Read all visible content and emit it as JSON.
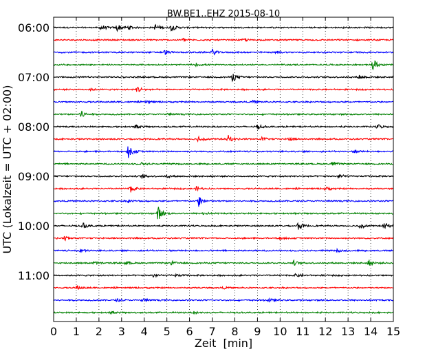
{
  "chart_data": {
    "type": "line",
    "title": "BW.BE1..EHZ 2015-08-10",
    "xlabel": "Zeit  [min]",
    "ylabel": "UTC (Lokalzeit = UTC + 02:00)",
    "xlim": [
      0,
      15
    ],
    "x_ticks": [
      "0",
      "1",
      "2",
      "3",
      "4",
      "5",
      "6",
      "7",
      "8",
      "9",
      "10",
      "11",
      "12",
      "13",
      "14",
      "15"
    ],
    "y_ticks": [
      "06:00",
      "07:00",
      "08:00",
      "09:00",
      "10:00",
      "11:00"
    ],
    "grid": "vertical dotted lines at each minute",
    "trace_colors": [
      "#000000",
      "#ff0000",
      "#0000ff",
      "#008000"
    ],
    "traces": [
      {
        "start": "06:00",
        "events": [
          {
            "t": 2.1,
            "amp": 0.45
          },
          {
            "t": 2.8,
            "amp": 0.6
          },
          {
            "t": 3.3,
            "amp": 0.35
          },
          {
            "t": 4.5,
            "amp": 0.5
          },
          {
            "t": 5.2,
            "amp": 0.55
          }
        ]
      },
      {
        "start": "06:15",
        "events": [
          {
            "t": 5.7,
            "amp": 0.3
          },
          {
            "t": 8.4,
            "amp": 0.2
          }
        ]
      },
      {
        "start": "06:30",
        "events": [
          {
            "t": 4.9,
            "amp": 0.35
          },
          {
            "t": 7.0,
            "amp": 0.5
          },
          {
            "t": 9.8,
            "amp": 0.2
          }
        ]
      },
      {
        "start": "06:45",
        "events": [
          {
            "t": 6.3,
            "amp": 0.2
          },
          {
            "t": 14.1,
            "amp": 0.9
          }
        ]
      },
      {
        "start": "07:00",
        "events": [
          {
            "t": 7.9,
            "amp": 0.7
          },
          {
            "t": 13.5,
            "amp": 0.35
          }
        ]
      },
      {
        "start": "07:15",
        "events": [
          {
            "t": 3.7,
            "amp": 0.55
          },
          {
            "t": 1.6,
            "amp": 0.15
          }
        ]
      },
      {
        "start": "07:30",
        "events": [
          {
            "t": 4.1,
            "amp": 0.2
          },
          {
            "t": 8.8,
            "amp": 0.2
          }
        ]
      },
      {
        "start": "07:45",
        "events": [
          {
            "t": 1.2,
            "amp": 0.65
          },
          {
            "t": 5.0,
            "amp": 0.15
          }
        ]
      },
      {
        "start": "08:00",
        "events": [
          {
            "t": 3.6,
            "amp": 0.3
          },
          {
            "t": 9.0,
            "amp": 0.4
          },
          {
            "t": 14.3,
            "amp": 0.4
          }
        ]
      },
      {
        "start": "08:15",
        "events": [
          {
            "t": 6.4,
            "amp": 0.5
          },
          {
            "t": 7.7,
            "amp": 0.6
          },
          {
            "t": 9.2,
            "amp": 0.3
          },
          {
            "t": 10.4,
            "amp": 0.3
          }
        ]
      },
      {
        "start": "08:30",
        "events": [
          {
            "t": 3.3,
            "amp": 1.0
          },
          {
            "t": 13.3,
            "amp": 0.2
          }
        ]
      },
      {
        "start": "08:45",
        "events": [
          {
            "t": 3.9,
            "amp": 0.2
          },
          {
            "t": 12.3,
            "amp": 0.3
          }
        ]
      },
      {
        "start": "09:00",
        "events": [
          {
            "t": 3.9,
            "amp": 0.3
          },
          {
            "t": 5.0,
            "amp": 0.2
          },
          {
            "t": 12.6,
            "amp": 0.4
          }
        ]
      },
      {
        "start": "09:15",
        "events": [
          {
            "t": 3.4,
            "amp": 0.55
          },
          {
            "t": 6.3,
            "amp": 0.3
          },
          {
            "t": 12.0,
            "amp": 0.3
          }
        ]
      },
      {
        "start": "09:30",
        "events": [
          {
            "t": 6.4,
            "amp": 0.95
          },
          {
            "t": 3.3,
            "amp": 0.2
          }
        ]
      },
      {
        "start": "09:45",
        "events": [
          {
            "t": 4.6,
            "amp": 1.2
          },
          {
            "t": 6.6,
            "amp": 0.2
          }
        ]
      },
      {
        "start": "10:00",
        "events": [
          {
            "t": 1.3,
            "amp": 0.4
          },
          {
            "t": 10.8,
            "amp": 0.6
          },
          {
            "t": 13.5,
            "amp": 0.55
          },
          {
            "t": 14.6,
            "amp": 0.55
          }
        ]
      },
      {
        "start": "10:15",
        "events": [
          {
            "t": 0.5,
            "amp": 0.4
          },
          {
            "t": 10.0,
            "amp": 0.2
          }
        ]
      },
      {
        "start": "10:30",
        "events": [
          {
            "t": 1.2,
            "amp": 0.3
          },
          {
            "t": 12.5,
            "amp": 0.2
          }
        ]
      },
      {
        "start": "10:45",
        "events": [
          {
            "t": 1.8,
            "amp": 0.25
          },
          {
            "t": 3.2,
            "amp": 0.25
          },
          {
            "t": 5.2,
            "amp": 0.3
          },
          {
            "t": 10.6,
            "amp": 0.35
          },
          {
            "t": 13.9,
            "amp": 0.5
          }
        ]
      },
      {
        "start": "11:00",
        "events": [
          {
            "t": 4.4,
            "amp": 0.35
          },
          {
            "t": 5.4,
            "amp": 0.2
          },
          {
            "t": 10.7,
            "amp": 0.25
          }
        ]
      },
      {
        "start": "11:15",
        "events": [
          {
            "t": 1.0,
            "amp": 0.4
          },
          {
            "t": 7.5,
            "amp": 0.15
          }
        ]
      },
      {
        "start": "11:30",
        "events": [
          {
            "t": 2.8,
            "amp": 0.2
          },
          {
            "t": 3.9,
            "amp": 0.3
          },
          {
            "t": 9.5,
            "amp": 0.3
          }
        ]
      },
      {
        "start": "11:45",
        "events": [
          {
            "t": 2.5,
            "amp": 0.15
          },
          {
            "t": 6.2,
            "amp": 0.15
          }
        ]
      }
    ]
  }
}
